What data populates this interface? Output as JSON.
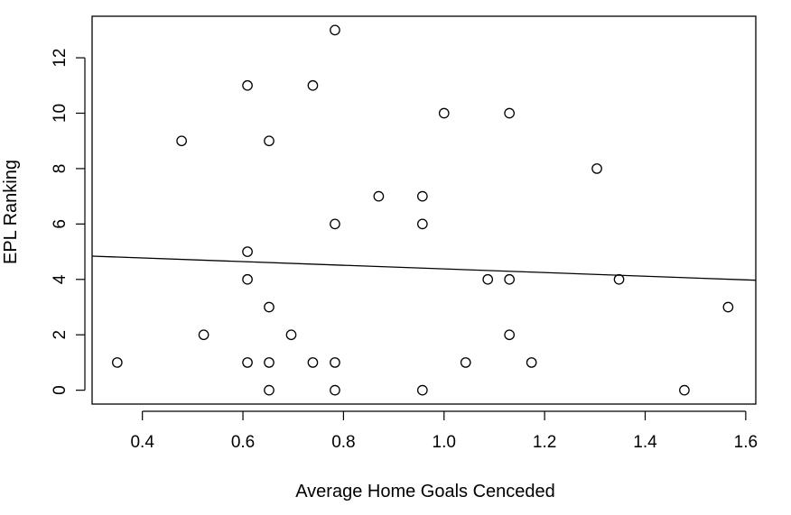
{
  "chart_data": {
    "type": "scatter",
    "title": "",
    "xlabel": "Average Home Goals Cenceded",
    "ylabel": "EPL Ranking",
    "xlim": [
      0.3,
      1.62
    ],
    "ylim": [
      -0.5,
      13.5
    ],
    "xticks": [
      "0.4",
      "0.6",
      "0.8",
      "1.0",
      "1.2",
      "1.4",
      "1.6"
    ],
    "yticks": [
      "0",
      "2",
      "4",
      "6",
      "8",
      "10",
      "12"
    ],
    "grid": false,
    "legend": "none",
    "points": [
      {
        "x": 0.35,
        "y": 1
      },
      {
        "x": 0.478,
        "y": 9
      },
      {
        "x": 0.522,
        "y": 2
      },
      {
        "x": 0.609,
        "y": 11
      },
      {
        "x": 0.609,
        "y": 5
      },
      {
        "x": 0.609,
        "y": 4
      },
      {
        "x": 0.609,
        "y": 1
      },
      {
        "x": 0.652,
        "y": 9
      },
      {
        "x": 0.652,
        "y": 3
      },
      {
        "x": 0.652,
        "y": 1
      },
      {
        "x": 0.652,
        "y": 0
      },
      {
        "x": 0.696,
        "y": 2
      },
      {
        "x": 0.739,
        "y": 11
      },
      {
        "x": 0.739,
        "y": 1
      },
      {
        "x": 0.783,
        "y": 13
      },
      {
        "x": 0.783,
        "y": 6
      },
      {
        "x": 0.783,
        "y": 1
      },
      {
        "x": 0.783,
        "y": 0
      },
      {
        "x": 0.87,
        "y": 7
      },
      {
        "x": 0.957,
        "y": 7
      },
      {
        "x": 0.957,
        "y": 6
      },
      {
        "x": 0.957,
        "y": 0
      },
      {
        "x": 1.0,
        "y": 10
      },
      {
        "x": 1.043,
        "y": 1
      },
      {
        "x": 1.087,
        "y": 4
      },
      {
        "x": 1.13,
        "y": 10
      },
      {
        "x": 1.13,
        "y": 4
      },
      {
        "x": 1.13,
        "y": 2
      },
      {
        "x": 1.174,
        "y": 1
      },
      {
        "x": 1.304,
        "y": 8
      },
      {
        "x": 1.348,
        "y": 4
      },
      {
        "x": 1.478,
        "y": 0
      },
      {
        "x": 1.565,
        "y": 3
      }
    ],
    "regression_line": {
      "x": [
        0.3,
        1.62
      ],
      "y": [
        4.84,
        3.97
      ]
    },
    "colors": {
      "marker": "#000000",
      "line": "#000000"
    }
  }
}
